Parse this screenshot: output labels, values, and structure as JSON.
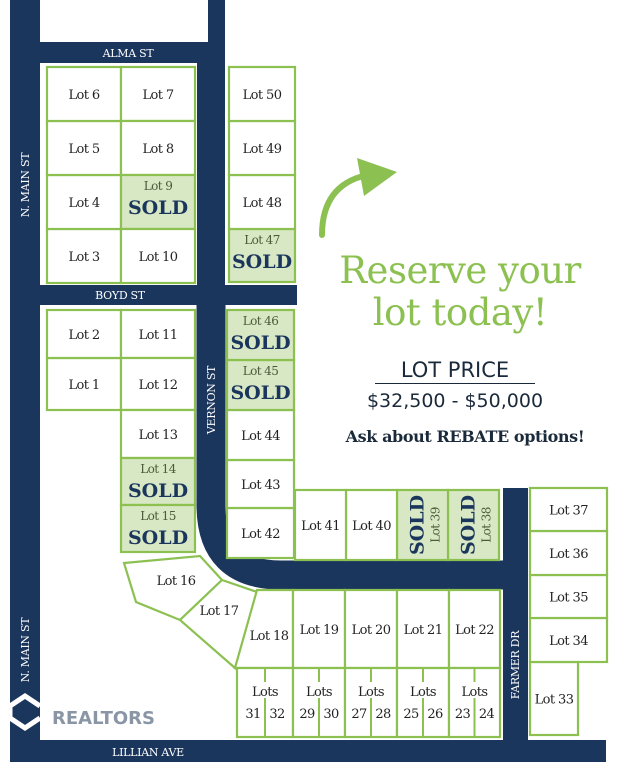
{
  "colors": {
    "road": "#1b365d",
    "lot_border": "#8cc152",
    "sold_fill": "#d8e8c4",
    "accent": "#8cc152"
  },
  "streets": {
    "alma": "ALMA ST",
    "boyd": "BOYD ST",
    "main_north": "N. MAIN ST",
    "main_south": "N. MAIN ST",
    "vernon": "VERNON ST",
    "farmer": "FARMER DR",
    "lillian": "LILLIAN AVE"
  },
  "sold_label": "SOLD",
  "lots": [
    {
      "id": "1",
      "label": "Lot 1",
      "sold": false
    },
    {
      "id": "2",
      "label": "Lot 2",
      "sold": false
    },
    {
      "id": "3",
      "label": "Lot 3",
      "sold": false
    },
    {
      "id": "4",
      "label": "Lot 4",
      "sold": false
    },
    {
      "id": "5",
      "label": "Lot 5",
      "sold": false
    },
    {
      "id": "6",
      "label": "Lot 6",
      "sold": false
    },
    {
      "id": "7",
      "label": "Lot 7",
      "sold": false
    },
    {
      "id": "8",
      "label": "Lot 8",
      "sold": false
    },
    {
      "id": "9",
      "label": "Lot 9",
      "sold": true
    },
    {
      "id": "10",
      "label": "Lot 10",
      "sold": false
    },
    {
      "id": "11",
      "label": "Lot 11",
      "sold": false
    },
    {
      "id": "12",
      "label": "Lot 12",
      "sold": false
    },
    {
      "id": "13",
      "label": "Lot 13",
      "sold": false
    },
    {
      "id": "14",
      "label": "Lot 14",
      "sold": true
    },
    {
      "id": "15",
      "label": "Lot 15",
      "sold": true
    },
    {
      "id": "16",
      "label": "Lot 16",
      "sold": false
    },
    {
      "id": "17",
      "label": "Lot 17",
      "sold": false
    },
    {
      "id": "18",
      "label": "Lot 18",
      "sold": false
    },
    {
      "id": "19",
      "label": "Lot 19",
      "sold": false
    },
    {
      "id": "20",
      "label": "Lot 20",
      "sold": false
    },
    {
      "id": "21",
      "label": "Lot 21",
      "sold": false
    },
    {
      "id": "22",
      "label": "Lot 22",
      "sold": false
    },
    {
      "id": "33",
      "label": "Lot 33",
      "sold": false
    },
    {
      "id": "34",
      "label": "Lot 34",
      "sold": false
    },
    {
      "id": "35",
      "label": "Lot 35",
      "sold": false
    },
    {
      "id": "36",
      "label": "Lot 36",
      "sold": false
    },
    {
      "id": "37",
      "label": "Lot 37",
      "sold": false
    },
    {
      "id": "38",
      "label": "Lot 38",
      "sold": true
    },
    {
      "id": "39",
      "label": "Lot 39",
      "sold": true
    },
    {
      "id": "40",
      "label": "Lot 40",
      "sold": false
    },
    {
      "id": "41",
      "label": "Lot 41",
      "sold": false
    },
    {
      "id": "42",
      "label": "Lot 42",
      "sold": false
    },
    {
      "id": "43",
      "label": "Lot 43",
      "sold": false
    },
    {
      "id": "44",
      "label": "Lot 44",
      "sold": false
    },
    {
      "id": "45",
      "label": "Lot 45",
      "sold": true
    },
    {
      "id": "46",
      "label": "Lot 46",
      "sold": true
    },
    {
      "id": "47",
      "label": "Lot 47",
      "sold": true
    },
    {
      "id": "48",
      "label": "Lot 48",
      "sold": false
    },
    {
      "id": "49",
      "label": "Lot 49",
      "sold": false
    },
    {
      "id": "50",
      "label": "Lot 50",
      "sold": false
    }
  ],
  "paired_lots": [
    {
      "id": "31-32",
      "label": "Lots",
      "nums": [
        "31",
        "32"
      ]
    },
    {
      "id": "29-30",
      "label": "Lots",
      "nums": [
        "29",
        "30"
      ]
    },
    {
      "id": "27-28",
      "label": "Lots",
      "nums": [
        "27",
        "28"
      ]
    },
    {
      "id": "25-26",
      "label": "Lots",
      "nums": [
        "25",
        "26"
      ]
    },
    {
      "id": "23-24",
      "label": "Lots",
      "nums": [
        "23",
        "24"
      ]
    }
  ],
  "promo": {
    "headline_1": "Reserve your",
    "headline_2": "lot today!",
    "price_label": "LOT PRICE",
    "price_range": "$32,500 - $50,000",
    "rebate": "Ask about REBATE options!",
    "arrow_icon": "curved-arrow-up-right"
  },
  "watermark": "REALTORS"
}
